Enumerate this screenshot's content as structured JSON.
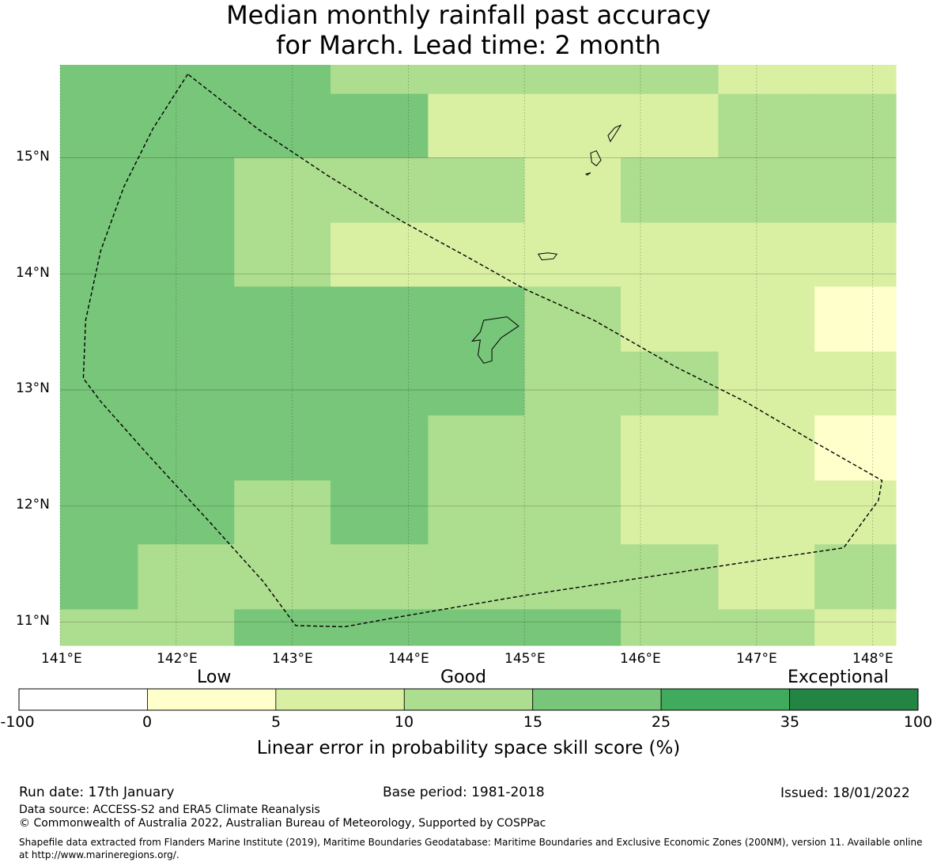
{
  "title": {
    "line1": "Median monthly rainfall past accuracy",
    "line2": "for March. Lead time: 2 month"
  },
  "map": {
    "lon_range": [
      141.0,
      148.2
    ],
    "lat_range": [
      10.8,
      15.8
    ],
    "lon_ticks": [
      {
        "value": 141,
        "label": "141°E"
      },
      {
        "value": 142,
        "label": "142°E"
      },
      {
        "value": 143,
        "label": "143°E"
      },
      {
        "value": 144,
        "label": "144°E"
      },
      {
        "value": 145,
        "label": "145°E"
      },
      {
        "value": 146,
        "label": "146°E"
      },
      {
        "value": 147,
        "label": "147°E"
      },
      {
        "value": 148,
        "label": "148°E"
      }
    ],
    "lat_ticks": [
      {
        "value": 15,
        "label": "15°N"
      },
      {
        "value": 14,
        "label": "14°N"
      },
      {
        "value": 13,
        "label": "13°N"
      },
      {
        "value": 12,
        "label": "12°N"
      },
      {
        "value": 11,
        "label": "11°N"
      }
    ],
    "cell_lon_edges": [
      141.0,
      141.67,
      142.5,
      143.33,
      144.17,
      145.0,
      145.83,
      146.67,
      147.5,
      148.2
    ],
    "cell_lat_edges": [
      15.8,
      15.55,
      15.0,
      14.44,
      13.89,
      13.33,
      12.78,
      12.22,
      11.67,
      11.11,
      10.8
    ],
    "skill_class_grid": [
      [
        3,
        3,
        3,
        2,
        2,
        2,
        2,
        1,
        1
      ],
      [
        3,
        3,
        3,
        3,
        1,
        1,
        1,
        2,
        2
      ],
      [
        3,
        3,
        2,
        2,
        2,
        1,
        2,
        2,
        2
      ],
      [
        3,
        3,
        2,
        1,
        1,
        1,
        1,
        1,
        1
      ],
      [
        3,
        3,
        3,
        3,
        3,
        2,
        1,
        1,
        0
      ],
      [
        3,
        3,
        3,
        3,
        3,
        2,
        2,
        1,
        1
      ],
      [
        3,
        3,
        3,
        3,
        2,
        2,
        1,
        1,
        0
      ],
      [
        3,
        3,
        2,
        3,
        2,
        2,
        1,
        1,
        1
      ],
      [
        3,
        2,
        2,
        2,
        2,
        2,
        2,
        1,
        2
      ],
      [
        2,
        2,
        3,
        3,
        3,
        3,
        2,
        2,
        1
      ]
    ],
    "eez_boundary": [
      [
        142.1,
        15.72
      ],
      [
        141.8,
        15.25
      ],
      [
        141.55,
        14.75
      ],
      [
        141.35,
        14.2
      ],
      [
        141.22,
        13.6
      ],
      [
        141.2,
        13.1
      ],
      [
        141.35,
        12.9
      ],
      [
        141.75,
        12.45
      ],
      [
        142.3,
        11.85
      ],
      [
        142.75,
        11.35
      ],
      [
        143.03,
        10.97
      ],
      [
        143.45,
        10.96
      ],
      [
        143.95,
        11.05
      ],
      [
        145.0,
        11.23
      ],
      [
        146.0,
        11.38
      ],
      [
        147.0,
        11.53
      ],
      [
        147.75,
        11.64
      ],
      [
        148.05,
        12.05
      ],
      [
        148.08,
        12.22
      ],
      [
        147.5,
        12.55
      ],
      [
        146.9,
        12.9
      ],
      [
        146.3,
        13.2
      ],
      [
        145.6,
        13.6
      ],
      [
        145.0,
        13.87
      ],
      [
        144.5,
        14.15
      ],
      [
        143.95,
        14.45
      ],
      [
        143.3,
        14.85
      ],
      [
        142.7,
        15.25
      ],
      [
        142.1,
        15.72
      ]
    ],
    "islands": [
      {
        "name": "Guam",
        "coords": [
          [
            144.65,
            13.6
          ],
          [
            144.85,
            13.63
          ],
          [
            144.95,
            13.55
          ],
          [
            144.8,
            13.45
          ],
          [
            144.72,
            13.35
          ],
          [
            144.72,
            13.25
          ],
          [
            144.65,
            13.23
          ],
          [
            144.6,
            13.3
          ],
          [
            144.62,
            13.43
          ],
          [
            144.55,
            13.42
          ],
          [
            144.62,
            13.5
          ],
          [
            144.65,
            13.6
          ]
        ]
      },
      {
        "name": "Rota",
        "coords": [
          [
            145.12,
            14.17
          ],
          [
            145.2,
            14.18
          ],
          [
            145.28,
            14.17
          ],
          [
            145.25,
            14.13
          ],
          [
            145.15,
            14.12
          ],
          [
            145.12,
            14.17
          ]
        ]
      },
      {
        "name": "Tinian",
        "coords": [
          [
            145.57,
            15.04
          ],
          [
            145.62,
            15.06
          ],
          [
            145.66,
            14.98
          ],
          [
            145.62,
            14.93
          ],
          [
            145.58,
            14.96
          ],
          [
            145.57,
            15.04
          ]
        ]
      },
      {
        "name": "Saipan",
        "coords": [
          [
            145.72,
            15.19
          ],
          [
            145.78,
            15.26
          ],
          [
            145.83,
            15.28
          ],
          [
            145.78,
            15.2
          ],
          [
            145.74,
            15.14
          ],
          [
            145.72,
            15.19
          ]
        ]
      },
      {
        "name": "Aguijan",
        "coords": [
          [
            145.53,
            14.86
          ],
          [
            145.57,
            14.87
          ],
          [
            145.54,
            14.85
          ],
          [
            145.53,
            14.86
          ]
        ]
      }
    ]
  },
  "colorbar": {
    "category_labels": [
      "Low",
      "Good",
      "Exceptional"
    ],
    "bins": [
      {
        "from": -100,
        "to": 0,
        "color": "#ffffff"
      },
      {
        "from": 0,
        "to": 5,
        "color": "#ffffcc"
      },
      {
        "from": 5,
        "to": 10,
        "color": "#d9f0a3"
      },
      {
        "from": 10,
        "to": 15,
        "color": "#addd8e"
      },
      {
        "from": 15,
        "to": 25,
        "color": "#78c679"
      },
      {
        "from": 25,
        "to": 35,
        "color": "#41ab5d"
      },
      {
        "from": 35,
        "to": 100,
        "color": "#238443"
      }
    ],
    "tick_labels": [
      "-100",
      "0",
      "5",
      "10",
      "15",
      "25",
      "35",
      "100"
    ],
    "axis_title": "Linear error in probability space skill score (%)"
  },
  "footer": {
    "run_date": "Run date: 17th January",
    "base_period": "Base period: 1981-2018",
    "issued": "Issued: 18/01/2022",
    "data_source": "Data source: ACCESS-S2 and ERA5 Climate Reanalysis",
    "copyright": "© Commonwealth of Australia 2022, Australian Bureau of Meteorology, Supported by COSPPac",
    "shapefile_note": "Shapefile data extracted from Flanders Marine Institute (2019), Maritime Boundaries Geodatabase: Maritime Boundaries and Exclusive Economic Zones (200NM), version 11. Available online at http://www.marineregions.org/."
  }
}
